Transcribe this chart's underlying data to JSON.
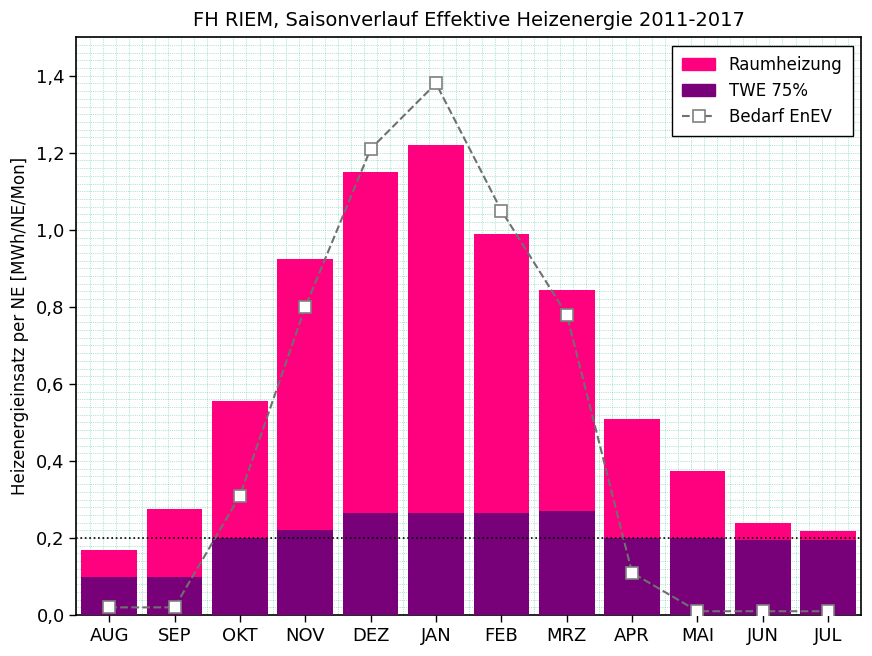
{
  "months": [
    "AUG",
    "SEP",
    "OKT",
    "NOV",
    "DEZ",
    "JAN",
    "FEB",
    "MRZ",
    "APR",
    "MAI",
    "JUN",
    "JUL"
  ],
  "twe": [
    0.1,
    0.1,
    0.2,
    0.22,
    0.265,
    0.265,
    0.265,
    0.27,
    0.2,
    0.2,
    0.195,
    0.195
  ],
  "raum": [
    0.07,
    0.175,
    0.355,
    0.705,
    0.885,
    0.955,
    0.725,
    0.575,
    0.31,
    0.175,
    0.045,
    0.022
  ],
  "enev": [
    0.02,
    0.02,
    0.31,
    0.8,
    1.21,
    1.38,
    1.05,
    0.78,
    0.11,
    0.01,
    0.01,
    0.01
  ],
  "hline_y": 0.2,
  "color_raum": "#FF007F",
  "color_twe": "#780078",
  "color_enev": "#707070",
  "title": "FH RIEM, Saisonverlauf Effektive Heizenergie 2011-2017",
  "ylabel": "Heizenergieinsatz per NE [MWh/NE/Mon]",
  "ylim": [
    0.0,
    1.5
  ],
  "yticks": [
    0.0,
    0.2,
    0.4,
    0.6,
    0.8,
    1.0,
    1.2,
    1.4
  ],
  "ytick_labels": [
    "0,0",
    "0,2",
    "0,4",
    "0,6",
    "0,8",
    "1,0",
    "1,2",
    "1,4"
  ],
  "legend_raum": "Raumheizung",
  "legend_twe": "TWE 75%",
  "legend_enev": "Bedarf EnEV",
  "background_color": "#ffffff",
  "grid_color": "#40C8A0",
  "bar_width": 0.85
}
